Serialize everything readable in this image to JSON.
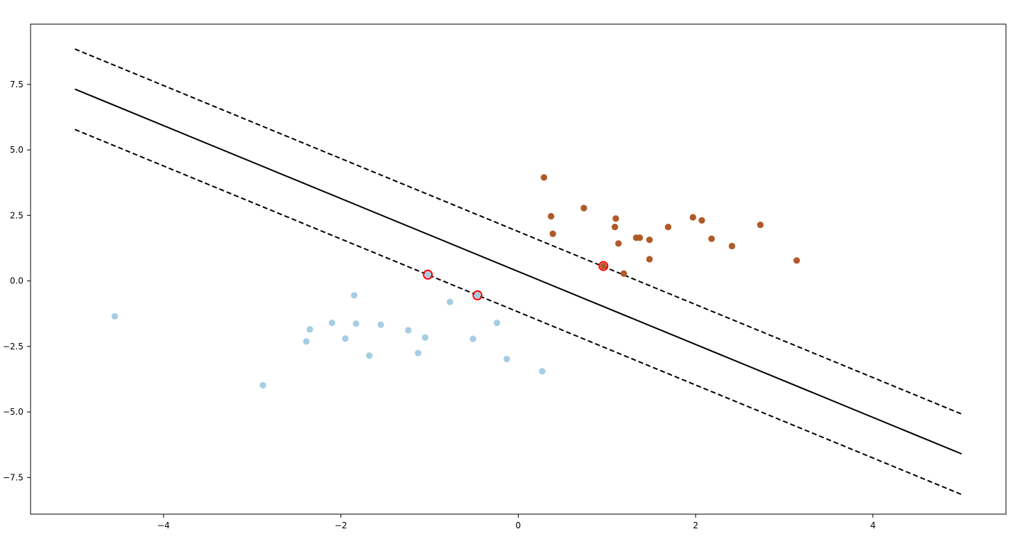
{
  "chart_data": {
    "type": "scatter",
    "title": "",
    "xlabel": "",
    "ylabel": "",
    "xlim": [
      -5.5,
      5.5
    ],
    "ylim": [
      -8.9,
      9.8
    ],
    "grid": false,
    "legend": "none",
    "xticks": [
      -4,
      -2,
      0,
      2,
      4
    ],
    "xtick_labels": [
      "−4",
      "−2",
      "0",
      "2",
      "4"
    ],
    "yticks": [
      7.5,
      5.0,
      2.5,
      0.0,
      -2.5,
      -5.0,
      -7.5
    ],
    "ytick_labels": [
      "7.5",
      "5.0",
      "2.5",
      "0.0",
      "−2.5",
      "−5.0",
      "−7.5"
    ],
    "series": [
      {
        "color": "#a6cee3",
        "points": [
          [
            -4.55,
            -1.35
          ],
          [
            -2.88,
            -3.98
          ],
          [
            -2.35,
            -1.85
          ],
          [
            -2.39,
            -2.31
          ],
          [
            -2.1,
            -1.6
          ],
          [
            -1.95,
            -2.2
          ],
          [
            -1.85,
            -0.55
          ],
          [
            -1.83,
            -1.63
          ],
          [
            -1.68,
            -2.85
          ],
          [
            -1.55,
            -1.67
          ],
          [
            -1.24,
            -1.88
          ],
          [
            -1.13,
            -2.75
          ],
          [
            -1.05,
            -2.16
          ],
          [
            -1.02,
            0.24
          ],
          [
            -0.77,
            -0.8
          ],
          [
            -0.51,
            -2.21
          ],
          [
            -0.46,
            -0.55
          ],
          [
            -0.24,
            -1.6
          ],
          [
            -0.13,
            -2.98
          ],
          [
            0.27,
            -3.45
          ]
        ]
      },
      {
        "color": "#b15928",
        "points": [
          [
            0.29,
            3.95
          ],
          [
            0.37,
            2.47
          ],
          [
            0.39,
            1.8
          ],
          [
            0.74,
            2.78
          ],
          [
            0.96,
            0.57
          ],
          [
            1.09,
            2.06
          ],
          [
            1.1,
            2.38
          ],
          [
            1.13,
            1.43
          ],
          [
            1.19,
            0.28
          ],
          [
            1.33,
            1.65
          ],
          [
            1.37,
            1.65
          ],
          [
            1.48,
            1.57
          ],
          [
            1.48,
            0.83
          ],
          [
            1.69,
            2.06
          ],
          [
            1.97,
            2.43
          ],
          [
            2.07,
            2.31
          ],
          [
            2.18,
            1.61
          ],
          [
            2.41,
            1.33
          ],
          [
            2.73,
            2.14
          ],
          [
            3.14,
            0.78
          ]
        ]
      }
    ],
    "support_vectors": {
      "edge_color": "#ff0000",
      "points": [
        [
          -1.02,
          0.24
        ],
        [
          -0.46,
          -0.55
        ],
        [
          0.96,
          0.57
        ]
      ]
    },
    "lines": [
      {
        "style": "dashed",
        "points": [
          [
            -5,
            8.85
          ],
          [
            5,
            -5.08
          ]
        ]
      },
      {
        "style": "solid",
        "points": [
          [
            -5,
            7.32
          ],
          [
            5,
            -6.6
          ]
        ]
      },
      {
        "style": "dashed",
        "points": [
          [
            -5,
            5.78
          ],
          [
            5,
            -8.15
          ]
        ]
      }
    ]
  }
}
